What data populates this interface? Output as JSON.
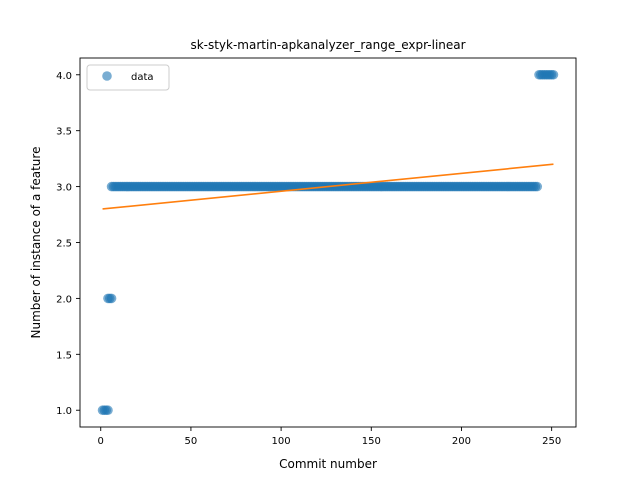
{
  "chart_data": {
    "type": "scatter",
    "title": "sk-styk-martin-apkanalyzer_range_expr-linear",
    "xlabel": "Commit number",
    "ylabel": "Number of instance of a feature",
    "xlim": [
      -11.5,
      263.5
    ],
    "ylim": [
      0.85,
      4.15
    ],
    "xticks": [
      0,
      50,
      100,
      150,
      200,
      250
    ],
    "yticks": [
      1.0,
      1.5,
      2.0,
      2.5,
      3.0,
      3.5,
      4.0
    ],
    "xtick_labels": [
      "0",
      "50",
      "100",
      "150",
      "200",
      "250"
    ],
    "ytick_labels": [
      "1.0",
      "1.5",
      "2.0",
      "2.5",
      "3.0",
      "3.5",
      "4.0"
    ],
    "legend": {
      "position": "upper-left",
      "entries": [
        "data"
      ]
    },
    "grid": false,
    "series": [
      {
        "name": "data",
        "kind": "scatter",
        "color": "#1f77b4",
        "segments": [
          {
            "x_start": 1,
            "x_end": 4,
            "y": 1.0
          },
          {
            "x_start": 4,
            "x_end": 6,
            "y": 2.0
          },
          {
            "x_start": 6,
            "x_end": 242,
            "y": 3.0
          },
          {
            "x_start": 243,
            "x_end": 251,
            "y": 4.0
          }
        ]
      },
      {
        "name": "",
        "kind": "line",
        "color": "#ff7f0e",
        "x": [
          1,
          251
        ],
        "y": [
          2.8,
          3.2
        ]
      }
    ]
  }
}
